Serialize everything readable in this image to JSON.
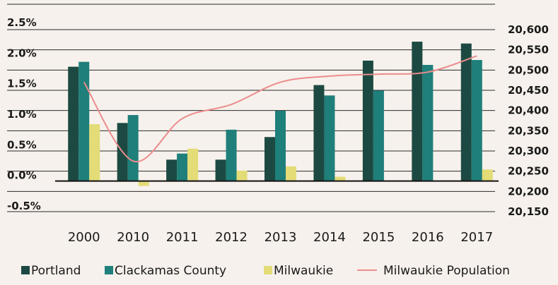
{
  "chart_data": {
    "type": "bar",
    "categories": [
      "2000",
      "2010",
      "2011",
      "2012",
      "2013",
      "2014",
      "2015",
      "2016",
      "2017"
    ],
    "series": [
      {
        "name": "Portland",
        "kind": "bar",
        "axis": "left",
        "color": "#1c4a42",
        "values": [
          1.87,
          0.95,
          0.35,
          0.35,
          0.72,
          1.57,
          1.97,
          2.28,
          2.25
        ]
      },
      {
        "name": "Clackamas County",
        "kind": "bar",
        "axis": "left",
        "color": "#1f7f7a",
        "values": [
          1.95,
          1.08,
          0.45,
          0.84,
          1.15,
          1.4,
          1.48,
          1.9,
          1.98
        ]
      },
      {
        "name": "Milwaukie",
        "kind": "bar",
        "axis": "left",
        "color": "#e3dc77",
        "values": [
          0.93,
          -0.08,
          0.53,
          0.17,
          0.24,
          0.07,
          0.0,
          0.0,
          0.19
        ]
      },
      {
        "name": "Milwaukie Population",
        "kind": "line",
        "axis": "right",
        "color": "#ec8c8c",
        "values": [
          20470,
          20275,
          20380,
          20415,
          20470,
          20485,
          20490,
          20495,
          20535
        ]
      }
    ],
    "left_axis": {
      "ticks": [
        "2.5%",
        "2.0%",
        "1.5%",
        "1.0%",
        "0.5%",
        "0.0%",
        "-0.5%"
      ],
      "ylim": [
        -0.5,
        2.5
      ]
    },
    "right_axis": {
      "ticks": [
        "20,600",
        "20,550",
        "20,500",
        "20,450",
        "20,400",
        "20,350",
        "20,300",
        "20,250",
        "20,200",
        "20,150"
      ],
      "ylim": [
        20150,
        20600
      ]
    },
    "grid": true,
    "legend_position": "bottom",
    "title": "",
    "xlabel": "",
    "ylabel": ""
  }
}
